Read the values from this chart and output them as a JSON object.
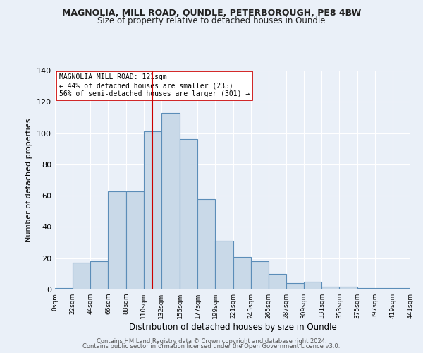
{
  "title1": "MAGNOLIA, MILL ROAD, OUNDLE, PETERBOROUGH, PE8 4BW",
  "title2": "Size of property relative to detached houses in Oundle",
  "xlabel": "Distribution of detached houses by size in Oundle",
  "ylabel": "Number of detached properties",
  "bar_edges": [
    0,
    22,
    44,
    66,
    88,
    110,
    132,
    155,
    177,
    199,
    221,
    243,
    265,
    287,
    309,
    331,
    353,
    375,
    397,
    419,
    441
  ],
  "hist_values": [
    1,
    17,
    18,
    63,
    63,
    101,
    113,
    96,
    58,
    31,
    21,
    18,
    10,
    4,
    5,
    2,
    2,
    1,
    1,
    1
  ],
  "bar_color": "#c9d9e8",
  "bar_edge_color": "#5b8db8",
  "property_size": 121,
  "vline_color": "#cc0000",
  "annotation_text": "MAGNOLIA MILL ROAD: 121sqm\n← 44% of detached houses are smaller (235)\n56% of semi-detached houses are larger (301) →",
  "annotation_box_color": "#ffffff",
  "annotation_box_edge": "#cc0000",
  "ylim": [
    0,
    140
  ],
  "yticks": [
    0,
    20,
    40,
    60,
    80,
    100,
    120,
    140
  ],
  "footer1": "Contains HM Land Registry data © Crown copyright and database right 2024.",
  "footer2": "Contains public sector information licensed under the Open Government Licence v3.0.",
  "bg_color": "#eaf0f8",
  "grid_color": "#ffffff"
}
